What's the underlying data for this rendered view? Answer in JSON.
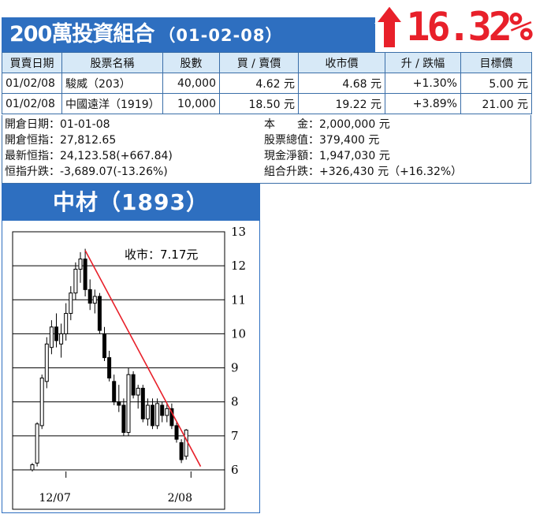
{
  "header": {
    "title": "200萬投資組合",
    "date": "（01-02-08）",
    "gain": "16.32%"
  },
  "table": {
    "columns": [
      "買賣日期",
      "股票名稱",
      "股數",
      "買 / 賣價",
      "收市價",
      "升 / 跌幅",
      "目標價"
    ],
    "rows": [
      [
        "01/02/08",
        "駿威（203）",
        "40,000",
        "4.62 元",
        "4.68 元",
        "+1.30%",
        "5.00 元"
      ],
      [
        "01/02/08",
        "中國遠洋（1919）",
        "10,000",
        "18.50 元",
        "19.22 元",
        "+3.89%",
        "21.00 元"
      ]
    ]
  },
  "summary": {
    "left": [
      {
        "label": "開倉日期",
        "value": "：01-01-08"
      },
      {
        "label": "開倉恒指",
        "value": "：27,812.65"
      },
      {
        "label": "最新恒指",
        "value": "：24,123.58(+667.84)"
      },
      {
        "label": "恒指升跌",
        "value": "：-3,689.07(-13.26%)"
      }
    ],
    "right": [
      {
        "label": "本　　金",
        "value": "：2,000,000 元"
      },
      {
        "label": "股票總值",
        "value": "：379,400 元"
      },
      {
        "label": "現金淨額",
        "value": "：1,947,030 元"
      },
      {
        "label": "組合升跌",
        "value": "：+326,430 元（+16.32%）"
      }
    ]
  },
  "stock": {
    "title": "中材（1893）"
  },
  "chart_data": {
    "type": "candlestick",
    "annotation": "收市：7.17元",
    "ylim": [
      6,
      13
    ],
    "yticks": [
      6,
      7,
      8,
      9,
      10,
      11,
      12,
      13
    ],
    "xtick_labels": [
      {
        "index": 7,
        "label": "12/07"
      },
      {
        "index": 33,
        "label": "2/08"
      }
    ],
    "grid": "horizontal",
    "colors": {
      "up": "#ffffff",
      "down": "#000000",
      "trend": "#e8202a",
      "grid": "#000000"
    },
    "trendline": {
      "from": [
        11,
        12.45
      ],
      "to": [
        35,
        6.1
      ]
    },
    "candles": [
      {
        "o": 6.0,
        "h": 6.2,
        "l": 5.95,
        "c": 6.15
      },
      {
        "o": 6.2,
        "h": 7.4,
        "l": 6.1,
        "c": 7.35
      },
      {
        "o": 7.3,
        "h": 8.8,
        "l": 7.2,
        "c": 8.7
      },
      {
        "o": 8.6,
        "h": 9.9,
        "l": 8.4,
        "c": 9.7
      },
      {
        "o": 9.6,
        "h": 10.4,
        "l": 9.4,
        "c": 10.2
      },
      {
        "o": 10.2,
        "h": 10.6,
        "l": 9.6,
        "c": 9.8
      },
      {
        "o": 9.7,
        "h": 10.3,
        "l": 9.3,
        "c": 10.0
      },
      {
        "o": 10.0,
        "h": 10.9,
        "l": 9.8,
        "c": 10.6
      },
      {
        "o": 10.6,
        "h": 11.4,
        "l": 10.4,
        "c": 11.2
      },
      {
        "o": 11.2,
        "h": 12.1,
        "l": 11.0,
        "c": 11.9
      },
      {
        "o": 11.9,
        "h": 12.4,
        "l": 11.5,
        "c": 12.2
      },
      {
        "o": 12.2,
        "h": 12.5,
        "l": 11.1,
        "c": 11.3
      },
      {
        "o": 11.3,
        "h": 11.6,
        "l": 10.7,
        "c": 10.9
      },
      {
        "o": 10.9,
        "h": 11.3,
        "l": 10.6,
        "c": 11.1
      },
      {
        "o": 11.1,
        "h": 11.2,
        "l": 10.0,
        "c": 10.1
      },
      {
        "o": 10.0,
        "h": 10.2,
        "l": 9.2,
        "c": 9.3
      },
      {
        "o": 9.3,
        "h": 9.5,
        "l": 8.6,
        "c": 8.7
      },
      {
        "o": 8.6,
        "h": 8.8,
        "l": 7.9,
        "c": 8.0
      },
      {
        "o": 8.0,
        "h": 8.5,
        "l": 7.7,
        "c": 7.9
      },
      {
        "o": 7.9,
        "h": 8.1,
        "l": 7.0,
        "c": 7.1
      },
      {
        "o": 7.1,
        "h": 9.0,
        "l": 7.0,
        "c": 8.8
      },
      {
        "o": 8.8,
        "h": 8.9,
        "l": 8.1,
        "c": 8.2
      },
      {
        "o": 8.2,
        "h": 8.5,
        "l": 7.8,
        "c": 8.4
      },
      {
        "o": 8.4,
        "h": 8.5,
        "l": 7.4,
        "c": 7.5
      },
      {
        "o": 7.5,
        "h": 8.1,
        "l": 7.3,
        "c": 7.9
      },
      {
        "o": 7.9,
        "h": 8.1,
        "l": 7.2,
        "c": 7.3
      },
      {
        "o": 7.3,
        "h": 8.1,
        "l": 7.2,
        "c": 7.95
      },
      {
        "o": 7.9,
        "h": 8.0,
        "l": 7.4,
        "c": 7.6
      },
      {
        "o": 7.6,
        "h": 7.95,
        "l": 7.4,
        "c": 7.8
      },
      {
        "o": 7.8,
        "h": 7.95,
        "l": 7.2,
        "c": 7.3
      },
      {
        "o": 7.3,
        "h": 7.4,
        "l": 6.8,
        "c": 6.9
      },
      {
        "o": 6.8,
        "h": 6.9,
        "l": 6.2,
        "c": 6.3
      },
      {
        "o": 6.4,
        "h": 7.2,
        "l": 6.3,
        "c": 7.17
      }
    ]
  }
}
